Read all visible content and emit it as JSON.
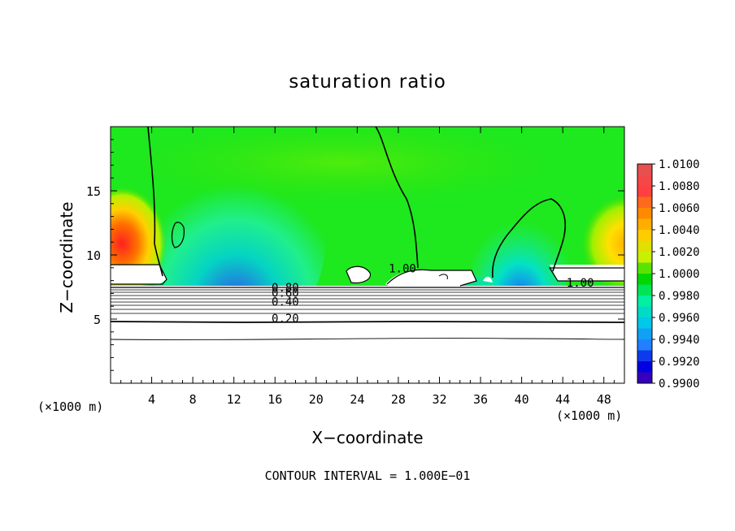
{
  "chart_data": {
    "type": "heatmap",
    "title": "saturation ratio",
    "xlabel": "X−coordinate",
    "ylabel": "Z−coordinate",
    "x_unit": "(×1000 m)",
    "z_unit": "(×1000 m)",
    "xlim": [
      0,
      50
    ],
    "ylim": [
      0,
      20
    ],
    "x_ticks": [
      4,
      8,
      12,
      16,
      20,
      24,
      28,
      32,
      36,
      40,
      44,
      48
    ],
    "y_ticks": [
      5,
      10,
      15
    ],
    "colorbar": {
      "levels": [
        1.01,
        1.008,
        1.006,
        1.004,
        1.002,
        1.0,
        0.998,
        0.996,
        0.994,
        0.992,
        0.99
      ],
      "labels": [
        "1.0100",
        "1.0080",
        "1.0060",
        "1.0040",
        "1.0020",
        "1.0000",
        "0.9980",
        "0.9960",
        "0.9940",
        "0.9920",
        "0.9900"
      ],
      "colors": [
        "#e85050",
        "#ff4040",
        "#ff8a00",
        "#ffcc00",
        "#c8f000",
        "#00d800",
        "#00f0a0",
        "#00c8e8",
        "#2080ff",
        "#0000e0",
        "#6000a0"
      ]
    },
    "contour_labels": [
      {
        "text": "0.80",
        "x": 17.0,
        "y": 7.2
      },
      {
        "text": "0.60",
        "x": 17.0,
        "y": 6.8
      },
      {
        "text": "0.40",
        "x": 17.0,
        "y": 6.1
      },
      {
        "text": "0.20",
        "x": 17.0,
        "y": 4.8
      },
      {
        "text": "1.00",
        "x": 28.4,
        "y": 8.7
      },
      {
        "text": "1.00",
        "x": 45.7,
        "y": 7.6
      }
    ],
    "contour_interval_text": "CONTOUR INTERVAL = 1.000E−01"
  }
}
